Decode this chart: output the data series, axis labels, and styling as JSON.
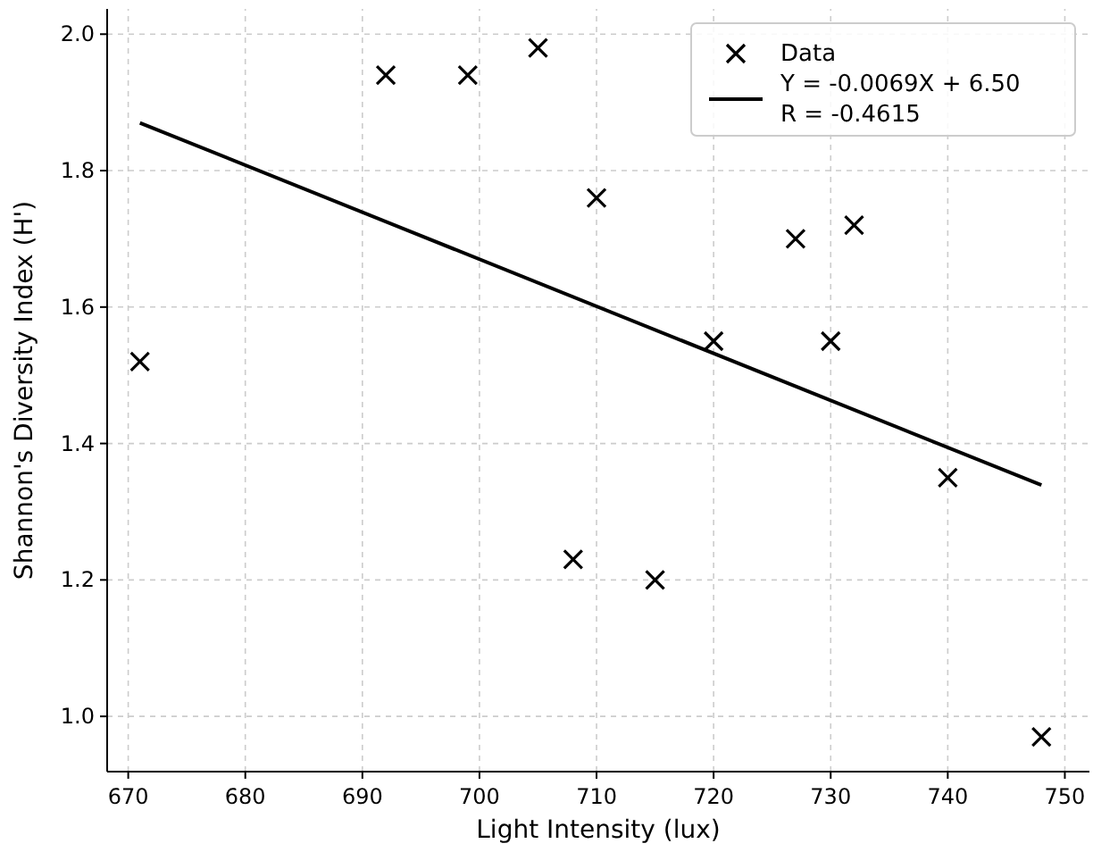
{
  "chart_data": {
    "type": "scatter",
    "xlabel": "Light Intensity (lux)",
    "ylabel": "Shannon's Diversity Index (H')",
    "xlim": [
      668.2,
      752.1
    ],
    "ylim": [
      0.919,
      2.037
    ],
    "xticks": [
      670,
      680,
      690,
      700,
      710,
      720,
      730,
      740,
      750
    ],
    "yticks": [
      {
        "value": 1.0,
        "label": "1.0"
      },
      {
        "value": 1.2,
        "label": "1.2"
      },
      {
        "value": 1.4,
        "label": "1.4"
      },
      {
        "value": 1.6,
        "label": "1.6"
      },
      {
        "value": 1.8,
        "label": "1.8"
      },
      {
        "value": 2.0,
        "label": "2.0"
      }
    ],
    "grid": true,
    "legend": "top right",
    "series": [
      {
        "name": "Data",
        "marker": "cross",
        "color": "#000000",
        "x": [
          671,
          692,
          699,
          705,
          710,
          708,
          715,
          720,
          727,
          732,
          730,
          740,
          748
        ],
        "values": [
          1.52,
          1.94,
          1.94,
          1.98,
          1.76,
          1.23,
          1.2,
          1.55,
          1.7,
          1.72,
          1.55,
          1.35,
          0.97
        ]
      },
      {
        "name": "Y = -0.0069X + 6.50\nR = -0.4615",
        "type": "line",
        "color": "#000000",
        "line_style": "solid",
        "x": [
          671,
          748
        ],
        "values": [
          1.87,
          1.339
        ]
      }
    ]
  }
}
